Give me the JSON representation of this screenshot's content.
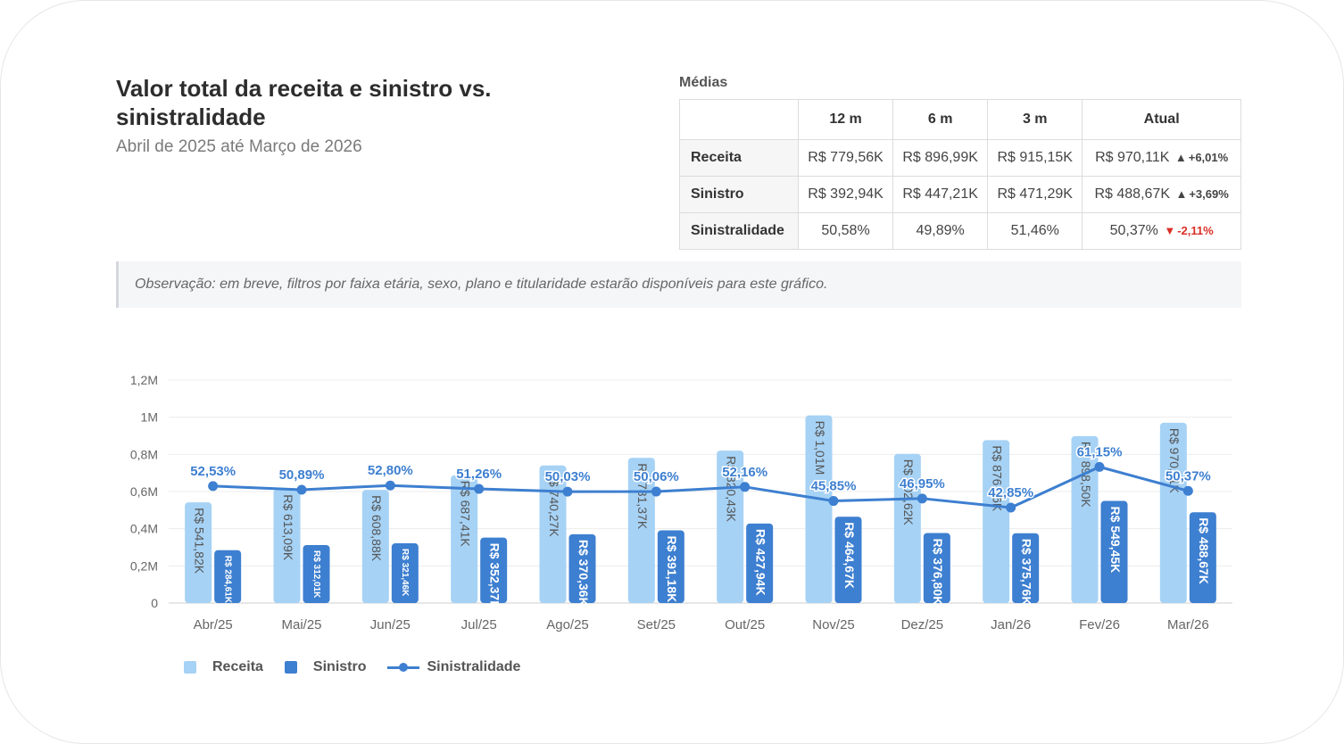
{
  "header": {
    "title": "Valor total da receita e sinistro vs. sinistralidade",
    "subtitle": "Abril de 2025 até Março de 2026"
  },
  "medias": {
    "label": "Médias",
    "columns": [
      "12 m",
      "6 m",
      "3 m",
      "Atual"
    ],
    "rows": [
      {
        "name": "Receita",
        "v12": "R$ 779,56K",
        "v6": "R$ 896,99K",
        "v3": "R$ 915,15K",
        "atual": "R$ 970,11K",
        "arrow": "▲",
        "delta": "+6,01%"
      },
      {
        "name": "Sinistro",
        "v12": "R$ 392,94K",
        "v6": "R$ 447,21K",
        "v3": "R$ 471,29K",
        "atual": "R$ 488,67K",
        "arrow": "▲",
        "delta": "+3,69%"
      },
      {
        "name": "Sinistralidade",
        "v12": "50,58%",
        "v6": "49,89%",
        "v3": "51,46%",
        "atual": "50,37%",
        "arrow": "▼",
        "delta": "-2,11%"
      }
    ]
  },
  "note": "Observação: em breve, filtros por faixa etária, sexo, plano e titularidade estarão disponíveis para este gráfico.",
  "legend": {
    "receita": "Receita",
    "sinistro": "Sinistro",
    "sinistralidade": "Sinistralidade"
  },
  "colors": {
    "receita": "#a6d2f5",
    "sinistro": "#3d7fd0",
    "line": "#3d7fd0",
    "delta_down": "#d93025"
  },
  "chart_data": {
    "type": "bar",
    "categories": [
      "Abr/25",
      "Mai/25",
      "Jun/25",
      "Jul/25",
      "Ago/25",
      "Set/25",
      "Out/25",
      "Nov/25",
      "Dez/25",
      "Jan/26",
      "Fev/26",
      "Mar/26"
    ],
    "ylim": [
      0,
      1200000
    ],
    "yticks": [
      0,
      200000,
      400000,
      600000,
      800000,
      1000000,
      1200000
    ],
    "ytick_labels": [
      "0",
      "0,2M",
      "0,4M",
      "0,6M",
      "0,8M",
      "1M",
      "1,2M"
    ],
    "series": [
      {
        "name": "Receita",
        "type": "bar",
        "values": [
          541820,
          613090,
          608880,
          687410,
          740270,
          781370,
          820430,
          1010000,
          802620,
          876860,
          898500,
          970110
        ],
        "labels": [
          "R$ 541,82K",
          "R$ 613,09K",
          "R$ 608,88K",
          "R$ 687,41K",
          "R$ 740,27K",
          "R$ 781,37K",
          "R$ 820,43K",
          "R$ 1,01M",
          "R$ 802,62K",
          "R$ 876,86K",
          "R$ 898,50K",
          "R$ 970,11K"
        ]
      },
      {
        "name": "Sinistro",
        "type": "bar",
        "values": [
          284610,
          312010,
          321460,
          352370,
          370360,
          391180,
          427940,
          464670,
          376800,
          375760,
          549450,
          488670
        ],
        "labels": [
          "R$ 284,61K",
          "R$ 312,01K",
          "R$ 321,46K",
          "R$ 352,37K",
          "R$ 370,36K",
          "R$ 391,18K",
          "R$ 427,94K",
          "R$ 464,67K",
          "R$ 376,80K",
          "R$ 375,76K",
          "R$ 549,45K",
          "R$ 488,67K"
        ]
      },
      {
        "name": "Sinistralidade",
        "type": "line",
        "values": [
          52.53,
          50.89,
          52.8,
          51.26,
          50.03,
          50.06,
          52.16,
          45.85,
          46.95,
          42.85,
          61.15,
          50.37
        ],
        "labels": [
          "52,53%",
          "50,89%",
          "52,80%",
          "51,26%",
          "50,03%",
          "50,06%",
          "52,16%",
          "45,85%",
          "46,95%",
          "42,85%",
          "61,15%",
          "50,37%"
        ]
      }
    ]
  }
}
